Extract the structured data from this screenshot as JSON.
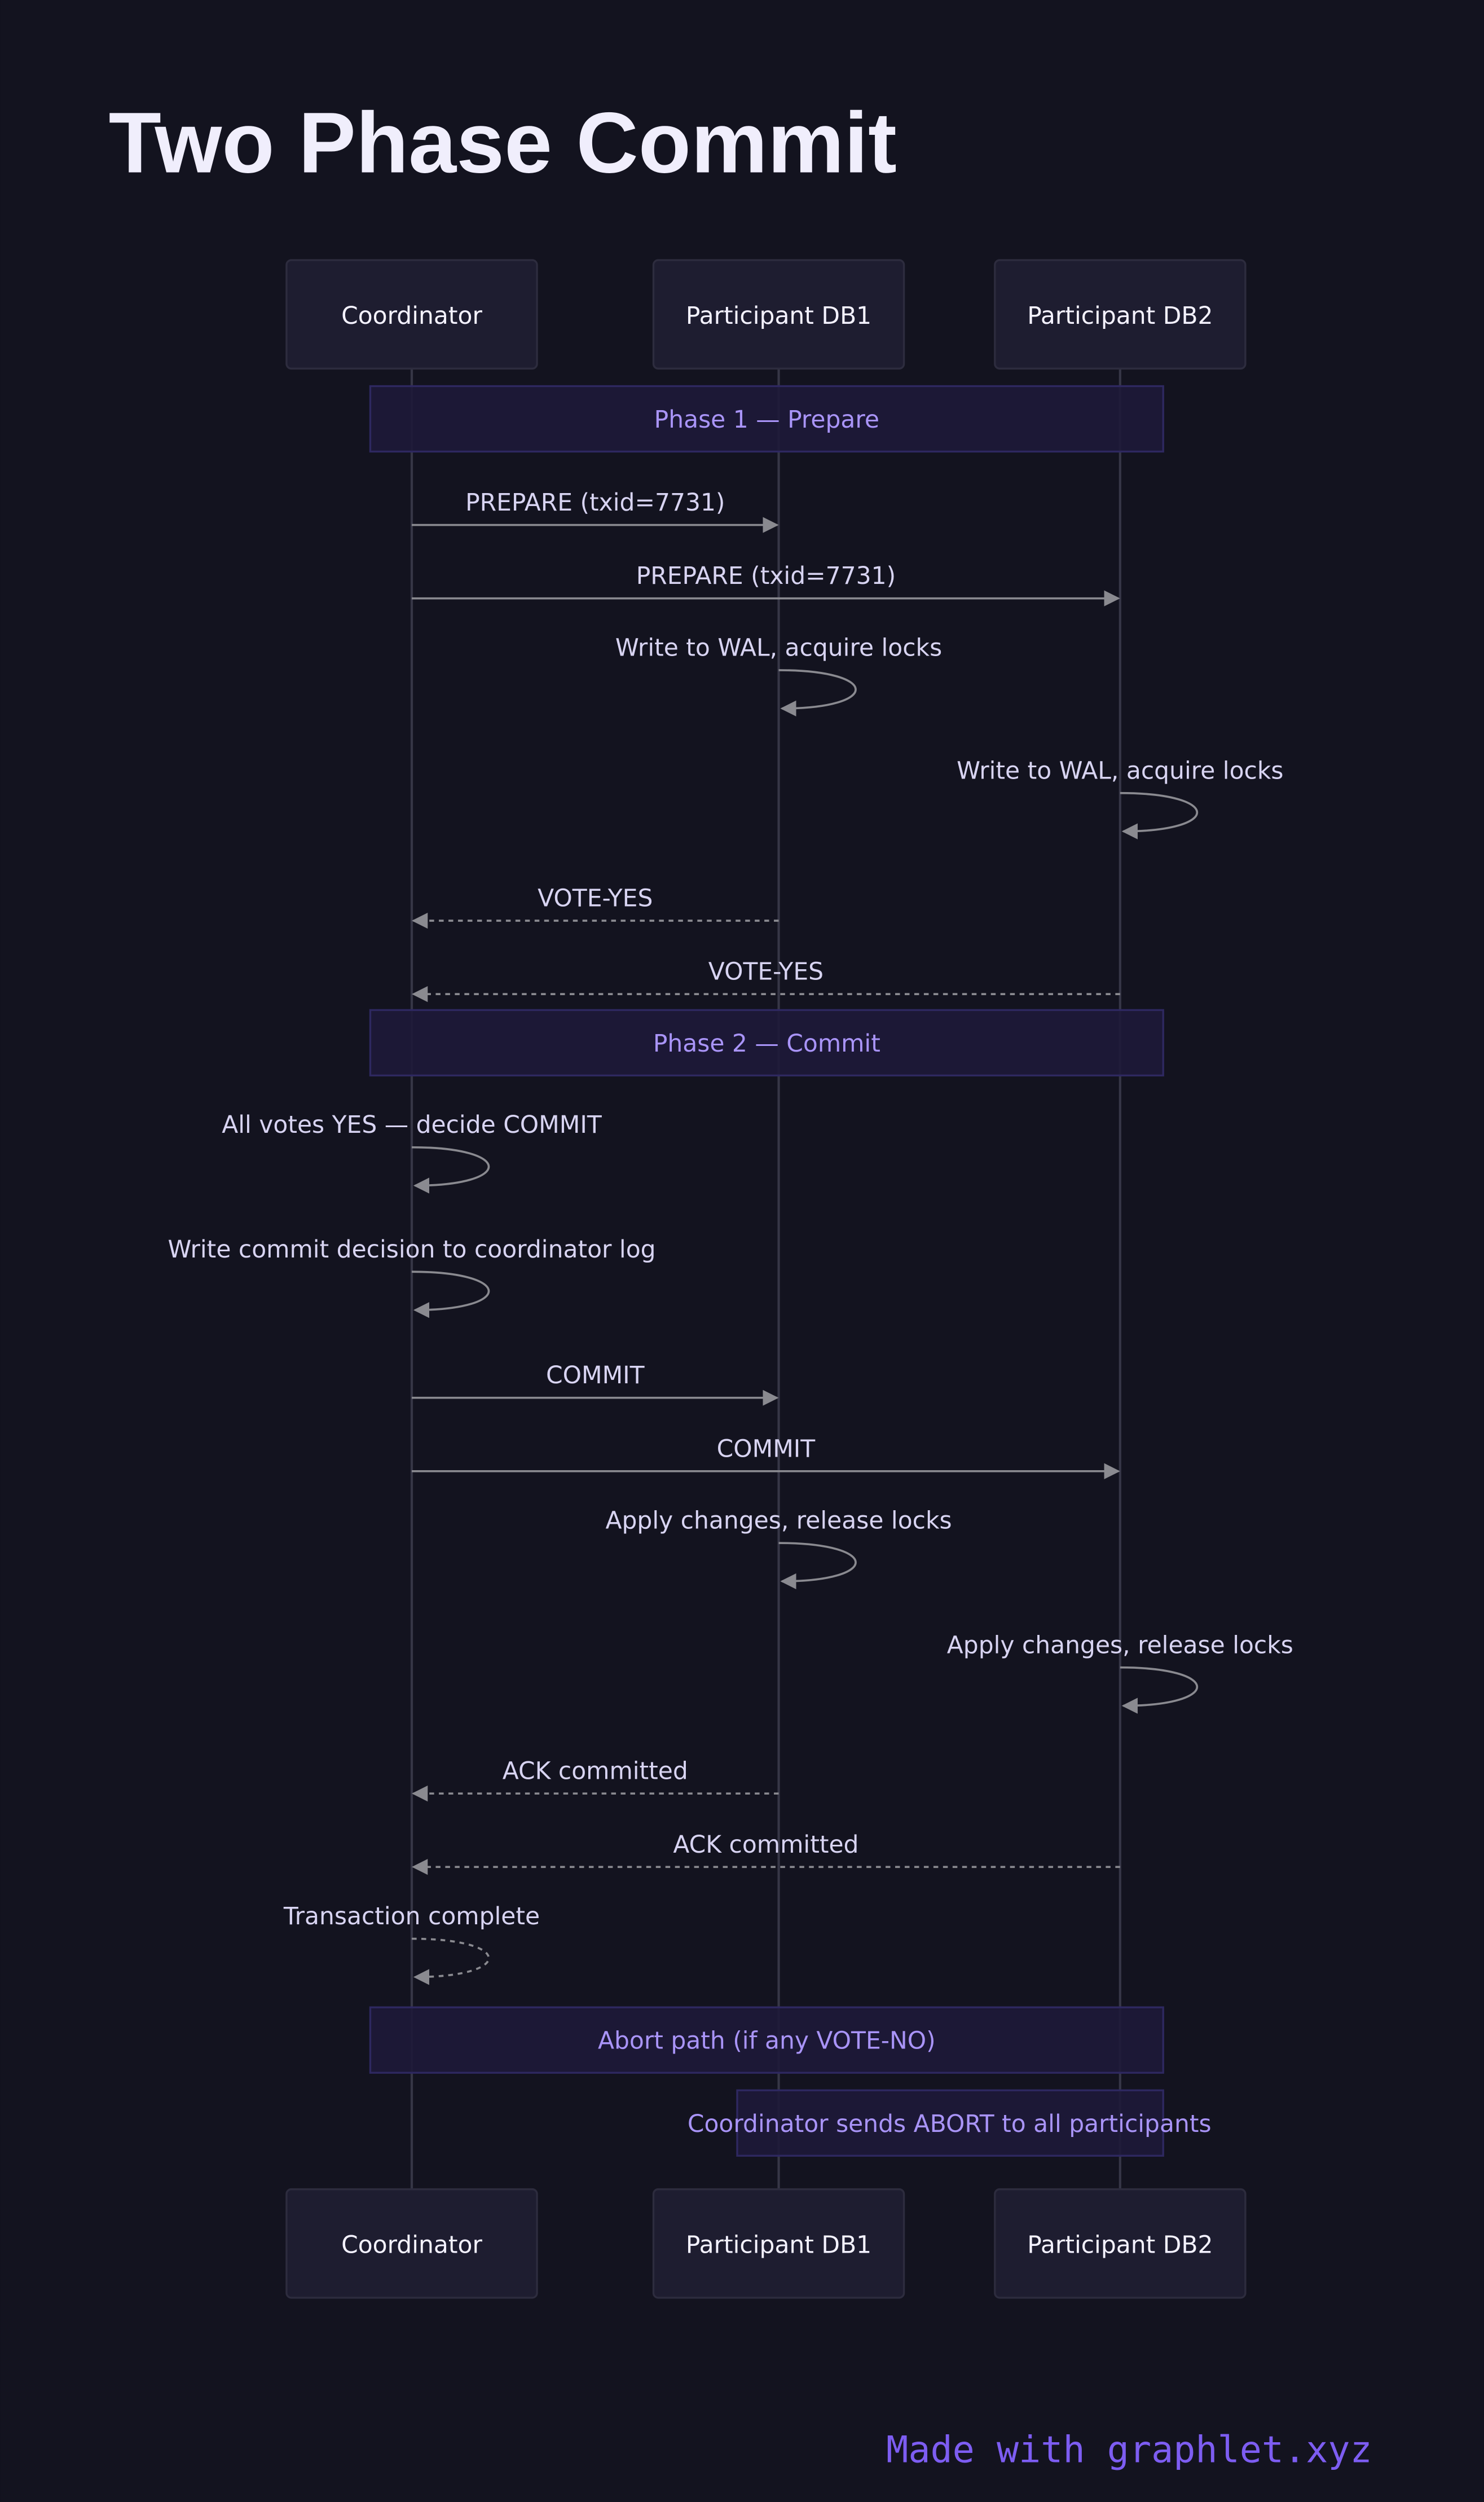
{
  "title": "Two Phase Commit",
  "footer": "Made with graphlet.xyz",
  "colors": {
    "background": "#13131f",
    "actor_fill": "#1e1d30",
    "actor_stroke": "#2d2c3e",
    "note_fill": "#1e1a38",
    "note_stroke": "#2e2860",
    "note_text": "#a994f8",
    "arrow": "#8a8a90",
    "lifeline": "#363646",
    "footer": "#7d5df2"
  },
  "participants": [
    "Coordinator",
    "Participant DB1",
    "Participant DB2"
  ],
  "items": [
    {
      "type": "note",
      "span": "all",
      "text": "Phase 1 — Prepare"
    },
    {
      "type": "message",
      "from": 0,
      "to": 1,
      "label": "PREPARE (txid=7731)",
      "dashed": false
    },
    {
      "type": "message",
      "from": 0,
      "to": 2,
      "label": "PREPARE (txid=7731)",
      "dashed": false
    },
    {
      "type": "self",
      "at": 1,
      "label": "Write to WAL, acquire locks",
      "dashed": false
    },
    {
      "type": "self",
      "at": 2,
      "label": "Write to WAL, acquire locks",
      "dashed": false
    },
    {
      "type": "message",
      "from": 1,
      "to": 0,
      "label": "VOTE-YES",
      "dashed": true
    },
    {
      "type": "message",
      "from": 2,
      "to": 0,
      "label": "VOTE-YES",
      "dashed": true
    },
    {
      "type": "note",
      "span": "all",
      "text": "Phase 2 — Commit"
    },
    {
      "type": "self",
      "at": 0,
      "label": "All votes YES — decide COMMIT",
      "dashed": false
    },
    {
      "type": "self",
      "at": 0,
      "label": "Write commit decision to coordinator log",
      "dashed": false
    },
    {
      "type": "message",
      "from": 0,
      "to": 1,
      "label": "COMMIT",
      "dashed": false
    },
    {
      "type": "message",
      "from": 0,
      "to": 2,
      "label": "COMMIT",
      "dashed": false
    },
    {
      "type": "self",
      "at": 1,
      "label": "Apply changes, release locks",
      "dashed": false
    },
    {
      "type": "self",
      "at": 2,
      "label": "Apply changes, release locks",
      "dashed": false
    },
    {
      "type": "message",
      "from": 1,
      "to": 0,
      "label": "ACK committed",
      "dashed": true
    },
    {
      "type": "message",
      "from": 2,
      "to": 0,
      "label": "ACK committed",
      "dashed": true
    },
    {
      "type": "self",
      "at": 0,
      "label": "Transaction complete",
      "dashed": true
    },
    {
      "type": "note",
      "span": "all",
      "text": "Abort path (if any VOTE-NO)"
    },
    {
      "type": "note",
      "span": "right",
      "text": "Coordinator sends ABORT to all participants"
    }
  ]
}
